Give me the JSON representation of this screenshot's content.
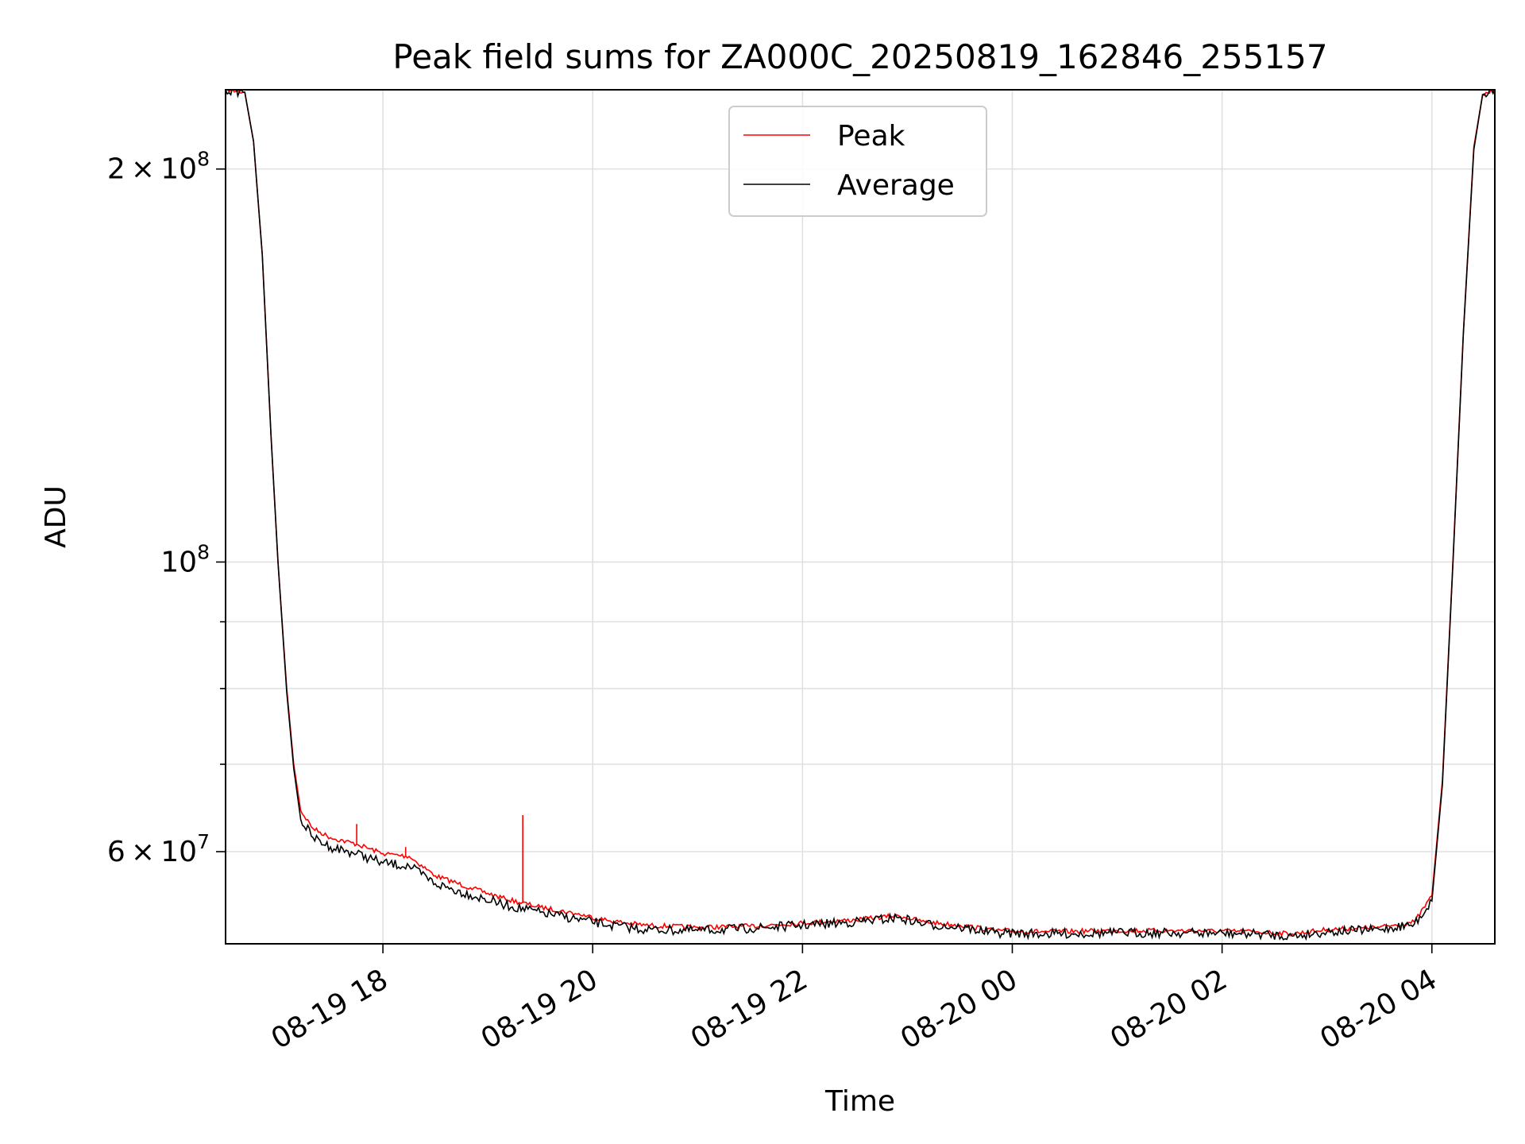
{
  "chart_data": {
    "type": "line",
    "title": "Peak field sums for ZA000C_20250819_162846_255157",
    "xlabel": "Time",
    "ylabel": "ADU",
    "x_axis": {
      "kind": "datetime",
      "range": [
        "2025-08-19 16:30",
        "2025-08-20 04:36"
      ],
      "ticks": [
        "2025-08-19 18:00",
        "2025-08-19 20:00",
        "2025-08-19 22:00",
        "2025-08-20 00:00",
        "2025-08-20 02:00",
        "2025-08-20 04:00"
      ],
      "tick_labels": [
        "08-19 18",
        "08-19 20",
        "08-19 22",
        "08-20 00",
        "08-20 02",
        "08-20 04"
      ]
    },
    "y_axis": {
      "scale": "log",
      "range": [
        51000000,
        230000000
      ],
      "major_ticks": [
        60000000,
        100000000,
        200000000
      ],
      "major_tick_labels": [
        {
          "base": "6",
          "times": "×",
          "pow": "10",
          "exp": "7"
        },
        {
          "base": "",
          "times": "",
          "pow": "10",
          "exp": "8"
        },
        {
          "base": "2",
          "times": "×",
          "pow": "10",
          "exp": "8"
        }
      ],
      "minor_ticks": [
        70000000,
        80000000,
        90000000
      ]
    },
    "grid": true,
    "legend": {
      "position": "top-center",
      "entries": [
        "Peak",
        "Average"
      ]
    },
    "series": [
      {
        "name": "Peak",
        "color": "#ff0000",
        "points": [
          [
            "2025-08-19 16:30",
            230000000
          ],
          [
            "2025-08-19 16:41",
            229000000
          ],
          [
            "2025-08-19 16:46",
            210000000
          ],
          [
            "2025-08-19 16:51",
            172000000
          ],
          [
            "2025-08-19 16:56",
            125000000
          ],
          [
            "2025-08-19 17:00",
            100000000
          ],
          [
            "2025-08-19 17:05",
            80000000
          ],
          [
            "2025-08-19 17:09",
            70000000
          ],
          [
            "2025-08-19 17:13",
            64500000
          ],
          [
            "2025-08-19 17:20",
            62500000
          ],
          [
            "2025-08-19 17:30",
            61500000
          ],
          [
            "2025-08-19 17:45",
            60800000
          ],
          [
            "2025-08-19 18:00",
            59800000
          ],
          [
            "2025-08-19 18:15",
            59500000
          ],
          [
            "2025-08-19 18:30",
            57500000
          ],
          [
            "2025-08-19 18:50",
            56300000
          ],
          [
            "2025-08-19 19:10",
            55200000
          ],
          [
            "2025-08-19 19:30",
            54400000
          ],
          [
            "2025-08-19 19:50",
            53800000
          ],
          [
            "2025-08-19 20:10",
            53100000
          ],
          [
            "2025-08-19 20:30",
            52700000
          ],
          [
            "2025-08-19 21:00",
            52500000
          ],
          [
            "2025-08-19 21:30",
            52600000
          ],
          [
            "2025-08-19 22:00",
            52900000
          ],
          [
            "2025-08-19 22:30",
            53200000
          ],
          [
            "2025-08-19 22:55",
            53600000
          ],
          [
            "2025-08-19 23:10",
            53000000
          ],
          [
            "2025-08-19 23:30",
            52700000
          ],
          [
            "2025-08-19 23:50",
            52200000
          ],
          [
            "2025-08-20 00:20",
            52100000
          ],
          [
            "2025-08-20 01:00",
            52200000
          ],
          [
            "2025-08-20 01:40",
            52200000
          ],
          [
            "2025-08-20 02:20",
            52100000
          ],
          [
            "2025-08-20 02:40",
            51900000
          ],
          [
            "2025-08-20 03:00",
            52300000
          ],
          [
            "2025-08-20 03:30",
            52500000
          ],
          [
            "2025-08-20 03:50",
            53000000
          ],
          [
            "2025-08-20 04:00",
            55500000
          ],
          [
            "2025-08-20 04:06",
            68000000
          ],
          [
            "2025-08-20 04:12",
            100000000
          ],
          [
            "2025-08-20 04:18",
            150000000
          ],
          [
            "2025-08-20 04:24",
            208000000
          ],
          [
            "2025-08-20 04:29",
            228000000
          ],
          [
            "2025-08-20 04:36",
            230000000
          ]
        ]
      },
      {
        "name": "Average",
        "color": "#000000",
        "points": [
          [
            "2025-08-19 16:30",
            230000000
          ],
          [
            "2025-08-19 16:41",
            229000000
          ],
          [
            "2025-08-19 16:46",
            210000000
          ],
          [
            "2025-08-19 16:51",
            172000000
          ],
          [
            "2025-08-19 16:56",
            125000000
          ],
          [
            "2025-08-19 17:00",
            100000000
          ],
          [
            "2025-08-19 17:05",
            79500000
          ],
          [
            "2025-08-19 17:09",
            69500000
          ],
          [
            "2025-08-19 17:13",
            63500000
          ],
          [
            "2025-08-19 17:20",
            61500000
          ],
          [
            "2025-08-19 17:30",
            60500000
          ],
          [
            "2025-08-19 17:45",
            59800000
          ],
          [
            "2025-08-19 18:00",
            58800000
          ],
          [
            "2025-08-19 18:15",
            58500000
          ],
          [
            "2025-08-19 18:30",
            56700000
          ],
          [
            "2025-08-19 18:50",
            55600000
          ],
          [
            "2025-08-19 19:10",
            54600000
          ],
          [
            "2025-08-19 19:30",
            53900000
          ],
          [
            "2025-08-19 19:50",
            53300000
          ],
          [
            "2025-08-19 20:10",
            52700000
          ],
          [
            "2025-08-19 20:30",
            52300000
          ],
          [
            "2025-08-19 21:00",
            52200000
          ],
          [
            "2025-08-19 21:30",
            52400000
          ],
          [
            "2025-08-19 22:00",
            52700000
          ],
          [
            "2025-08-19 22:30",
            53000000
          ],
          [
            "2025-08-19 22:55",
            53400000
          ],
          [
            "2025-08-19 23:10",
            52800000
          ],
          [
            "2025-08-19 23:30",
            52500000
          ],
          [
            "2025-08-19 23:50",
            52000000
          ],
          [
            "2025-08-20 00:20",
            51900000
          ],
          [
            "2025-08-20 01:00",
            52000000
          ],
          [
            "2025-08-20 01:40",
            52000000
          ],
          [
            "2025-08-20 02:20",
            51900000
          ],
          [
            "2025-08-20 02:40",
            51700000
          ],
          [
            "2025-08-20 03:00",
            52100000
          ],
          [
            "2025-08-20 03:30",
            52300000
          ],
          [
            "2025-08-20 03:50",
            52800000
          ],
          [
            "2025-08-20 04:00",
            55000000
          ],
          [
            "2025-08-20 04:06",
            67500000
          ],
          [
            "2025-08-20 04:12",
            99500000
          ],
          [
            "2025-08-20 04:18",
            149500000
          ],
          [
            "2025-08-20 04:24",
            207000000
          ],
          [
            "2025-08-20 04:29",
            228000000
          ],
          [
            "2025-08-20 04:36",
            230000000
          ]
        ]
      }
    ],
    "annotations": [
      {
        "series": "Peak",
        "kind": "spike",
        "x": "2025-08-19 19:20",
        "y": 64000000
      },
      {
        "series": "Peak",
        "kind": "spike",
        "x": "2025-08-19 18:13",
        "y": 60500000
      },
      {
        "series": "Peak",
        "kind": "spike",
        "x": "2025-08-19 17:45",
        "y": 63000000
      }
    ]
  }
}
